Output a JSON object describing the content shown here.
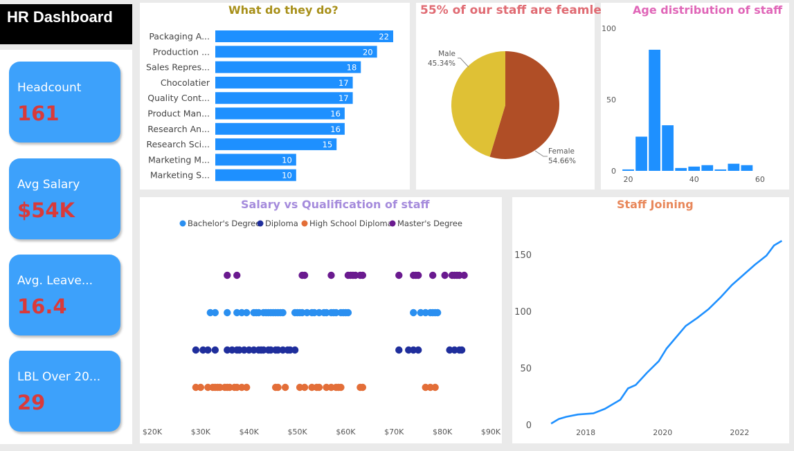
{
  "header": {
    "title": "HR Dashboard"
  },
  "kpis": [
    {
      "label": "Headcount",
      "value": "161"
    },
    {
      "label": "Avg Salary",
      "value": "$54K"
    },
    {
      "label": "Avg. Leave...",
      "value": "16.4"
    },
    {
      "label": "LBL Over 20...",
      "value": "29"
    }
  ],
  "colors": {
    "accent": "#1e90ff",
    "kpi_bg": "#3da1fb",
    "kpi_value": "#d93a3a",
    "female": "#b04e26",
    "male": "#dfc135"
  },
  "jobs_chart": {
    "title": "What do they do?",
    "title_color": "#a8901a",
    "chart_data": {
      "type": "bar",
      "orientation": "horizontal",
      "categories": [
        "Packaging A...",
        "Production ...",
        "Sales Repres...",
        "Chocolatier",
        "Quality Cont...",
        "Product Man...",
        "Research An...",
        "Research Sci...",
        "Marketing M...",
        "Marketing S..."
      ],
      "values": [
        22,
        20,
        18,
        17,
        17,
        16,
        16,
        15,
        10,
        10
      ]
    }
  },
  "gender_chart": {
    "title": "55% of our staff are feamle",
    "title_color": "#e06b73",
    "chart_data": {
      "type": "pie",
      "slices": [
        {
          "label": "Female",
          "value": 54.66,
          "pct_text": "54.66%",
          "color": "#b04e26"
        },
        {
          "label": "Male",
          "value": 45.34,
          "pct_text": "45.34%",
          "color": "#dfc135"
        }
      ]
    }
  },
  "age_chart": {
    "title": "Age distribution of staff",
    "title_color": "#e066b8",
    "chart_data": {
      "type": "bar",
      "bin_centers": [
        20,
        24,
        28,
        32,
        36,
        40,
        44,
        48,
        52,
        56,
        60,
        64
      ],
      "values": [
        1,
        24,
        85,
        32,
        2,
        3,
        4,
        1,
        5,
        4,
        0,
        0
      ],
      "x_ticks": [
        "20",
        "40",
        "60"
      ],
      "x_tick_values": [
        20,
        40,
        60
      ],
      "y_ticks": [
        "0",
        "50",
        "100"
      ],
      "y_tick_values": [
        0,
        50,
        100
      ],
      "ylim": [
        0,
        100
      ],
      "xlim": [
        18,
        68
      ]
    }
  },
  "salary_chart": {
    "title": "Salary vs Qualification of staff",
    "title_color": "#a58bdc",
    "chart_data": {
      "type": "scatter",
      "x_ticks": [
        "$20K",
        "$30K",
        "$40K",
        "$50K",
        "$60K",
        "$70K",
        "$80K",
        "$90K"
      ],
      "x_tick_values": [
        20000,
        30000,
        40000,
        50000,
        60000,
        70000,
        80000,
        90000
      ],
      "xlim": [
        20000,
        90000
      ],
      "series": [
        {
          "name": "Bachelor's Degree",
          "color": "#2a8ff0",
          "x": [
            32000,
            33000,
            35500,
            37500,
            38500,
            39500,
            41000,
            41500,
            42000,
            43000,
            43500,
            44000,
            44500,
            45000,
            45500,
            46000,
            46500,
            47000,
            49500,
            50000,
            50500,
            51000,
            52000,
            53000,
            53500,
            54500,
            55500,
            56000,
            57000,
            57500,
            58000,
            59000,
            59500,
            60000,
            60500,
            74000,
            75500,
            76500,
            77500,
            78000,
            78500,
            79000
          ]
        },
        {
          "name": "Diploma",
          "color": "#1f2e9c",
          "x": [
            29000,
            30500,
            31500,
            33000,
            35500,
            36500,
            37500,
            38000,
            39000,
            40000,
            41000,
            42000,
            42500,
            43000,
            44000,
            44500,
            45500,
            46000,
            47000,
            48000,
            48500,
            49500,
            71000,
            73000,
            74000,
            75000,
            81500,
            82500,
            83500,
            84000
          ]
        },
        {
          "name": "High School Diploma",
          "color": "#e36e38",
          "x": [
            29000,
            30000,
            31500,
            32500,
            33000,
            33500,
            34000,
            35000,
            35500,
            36000,
            37000,
            37500,
            38500,
            39500,
            45500,
            46000,
            47500,
            50500,
            51500,
            53000,
            54000,
            54500,
            56000,
            57000,
            58000,
            58500,
            59000,
            63000,
            63500,
            76500,
            77500,
            78500
          ]
        },
        {
          "name": "Master's Degree",
          "color": "#6a1a8f",
          "x": [
            35500,
            37500,
            51000,
            51500,
            57000,
            60500,
            61000,
            61500,
            62000,
            63000,
            63500,
            71000,
            74000,
            74500,
            75000,
            78000,
            80500,
            82000,
            82500,
            83000,
            83500,
            84500
          ]
        }
      ]
    }
  },
  "joining_chart": {
    "title": "Staff Joining",
    "title_color": "#e8875a",
    "chart_data": {
      "type": "line",
      "x": [
        2017.1,
        2017.3,
        2017.5,
        2017.8,
        2018.2,
        2018.5,
        2018.9,
        2019.1,
        2019.3,
        2019.6,
        2019.9,
        2020.1,
        2020.3,
        2020.6,
        2020.9,
        2021.2,
        2021.5,
        2021.8,
        2022.1,
        2022.4,
        2022.7,
        2022.9,
        2023.1
      ],
      "y": [
        1,
        5,
        7,
        9,
        10,
        14,
        22,
        32,
        35,
        46,
        56,
        67,
        75,
        87,
        94,
        102,
        112,
        123,
        132,
        141,
        149,
        158,
        162
      ],
      "x_ticks": [
        "2018",
        "2020",
        "2022"
      ],
      "x_tick_values": [
        2018,
        2020,
        2022
      ],
      "y_ticks": [
        "0",
        "50",
        "100",
        "150"
      ],
      "y_tick_values": [
        0,
        50,
        100,
        150
      ],
      "xlim": [
        2016.9,
        2023.2
      ],
      "ylim": [
        0,
        170
      ]
    }
  }
}
